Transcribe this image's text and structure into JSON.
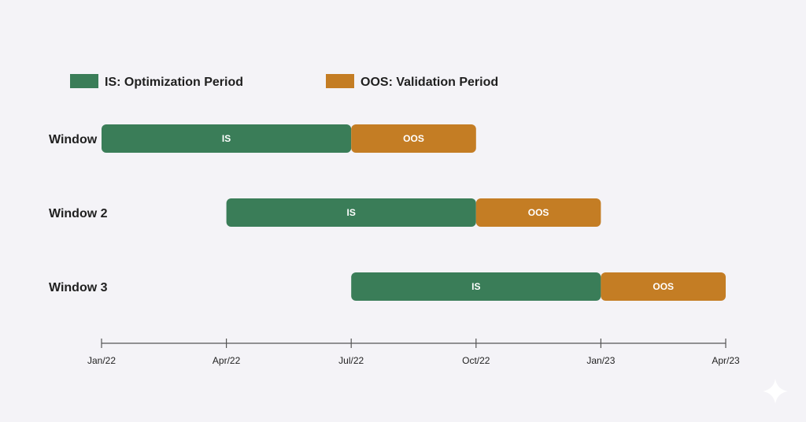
{
  "chart_data": {
    "type": "gantt",
    "legend": [
      {
        "label": "IS: Optimization Period",
        "color": "#3a7d58"
      },
      {
        "label": "OOS: Validation Period",
        "color": "#c47d24"
      }
    ],
    "colors": {
      "is": "#3a7d58",
      "oos": "#c47d24",
      "axis": "#555555",
      "background": "#f4f3f7"
    },
    "rows": [
      {
        "label": "Window",
        "segments": [
          {
            "label": "IS",
            "kind": "is",
            "start": "Jan/22",
            "end": "Jul/22"
          },
          {
            "label": "OOS",
            "kind": "oos",
            "start": "Jul/22",
            "end": "Oct/22"
          }
        ]
      },
      {
        "label": "Window 2",
        "segments": [
          {
            "label": "IS",
            "kind": "is",
            "start": "Apr/22",
            "end": "Oct/22"
          },
          {
            "label": "OOS",
            "kind": "oos",
            "start": "Oct/22",
            "end": "Jan/23"
          }
        ]
      },
      {
        "label": "Window 3",
        "segments": [
          {
            "label": "IS",
            "kind": "is",
            "start": "Jul/22",
            "end": "Jan/23"
          },
          {
            "label": "OOS",
            "kind": "oos",
            "start": "Jan/23",
            "end": "Apr/23"
          }
        ]
      }
    ],
    "x_ticks": [
      "Jan/22",
      "Apr/22",
      "Jul/22",
      "Oct/22",
      "Jan/23",
      "Apr/23"
    ],
    "xlim": [
      "Jan/22",
      "Apr/23"
    ],
    "grid": false,
    "legend_position": "top-left"
  },
  "decorations": {
    "corner_icon": "sparkle-icon"
  }
}
